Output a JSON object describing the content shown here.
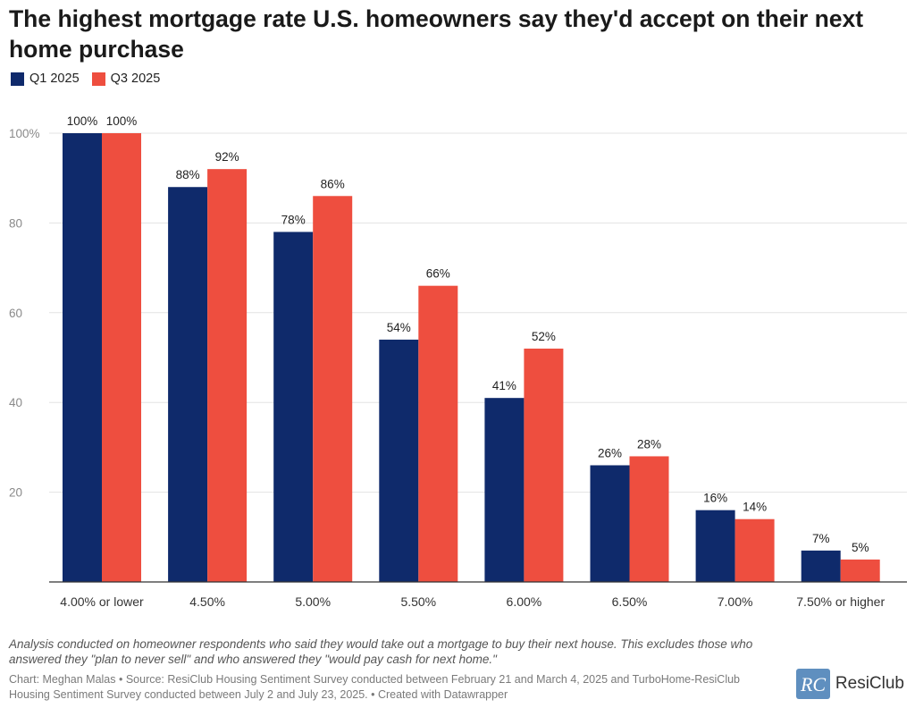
{
  "title": "The highest mortgage rate U.S. homeowners say they'd accept on their next home purchase",
  "legend": {
    "q1_label": "Q1 2025",
    "q3_label": "Q3 2025"
  },
  "colors": {
    "q1": "#0f2a6b",
    "q3": "#ee4e3f",
    "grid": "#e3e3e3",
    "axis": "#333333"
  },
  "chart_data": {
    "type": "bar",
    "categories": [
      "4.00% or lower",
      "4.50%",
      "5.00%",
      "5.50%",
      "6.00%",
      "6.50%",
      "7.00%",
      "7.50% or higher"
    ],
    "series": [
      {
        "name": "Q1 2025",
        "values": [
          100,
          88,
          78,
          54,
          41,
          26,
          16,
          7
        ],
        "labels": [
          "100%",
          "88%",
          "78%",
          "54%",
          "41%",
          "26%",
          "16%",
          "7%"
        ]
      },
      {
        "name": "Q3 2025",
        "values": [
          100,
          92,
          86,
          66,
          52,
          28,
          14,
          5
        ],
        "labels": [
          "100%",
          "92%",
          "86%",
          "66%",
          "52%",
          "28%",
          "14%",
          "5%"
        ]
      }
    ],
    "yticks": [
      "100%",
      "80",
      "60",
      "40",
      "20"
    ],
    "ytick_values": [
      100,
      80,
      60,
      40,
      20
    ],
    "ylim": [
      0,
      100
    ],
    "grid": true,
    "legend_position": "top-left"
  },
  "footer": {
    "notes": "Analysis conducted on homeowner respondents who said they would take out a mortgage to buy their next house. This excludes those who answered they \"plan to never sell\" and who answered they \"would pay cash for next home.\"",
    "credit": "Chart: Meghan Malas • Source: ResiClub Housing Sentiment Survey conducted between February 21 and March 4, 2025 and TurboHome-ResiClub Housing Sentiment Survey conducted between July 2 and July 23, 2025. • Created with Datawrapper",
    "logo_text": "ResiClub",
    "logo_mark": "RC"
  }
}
